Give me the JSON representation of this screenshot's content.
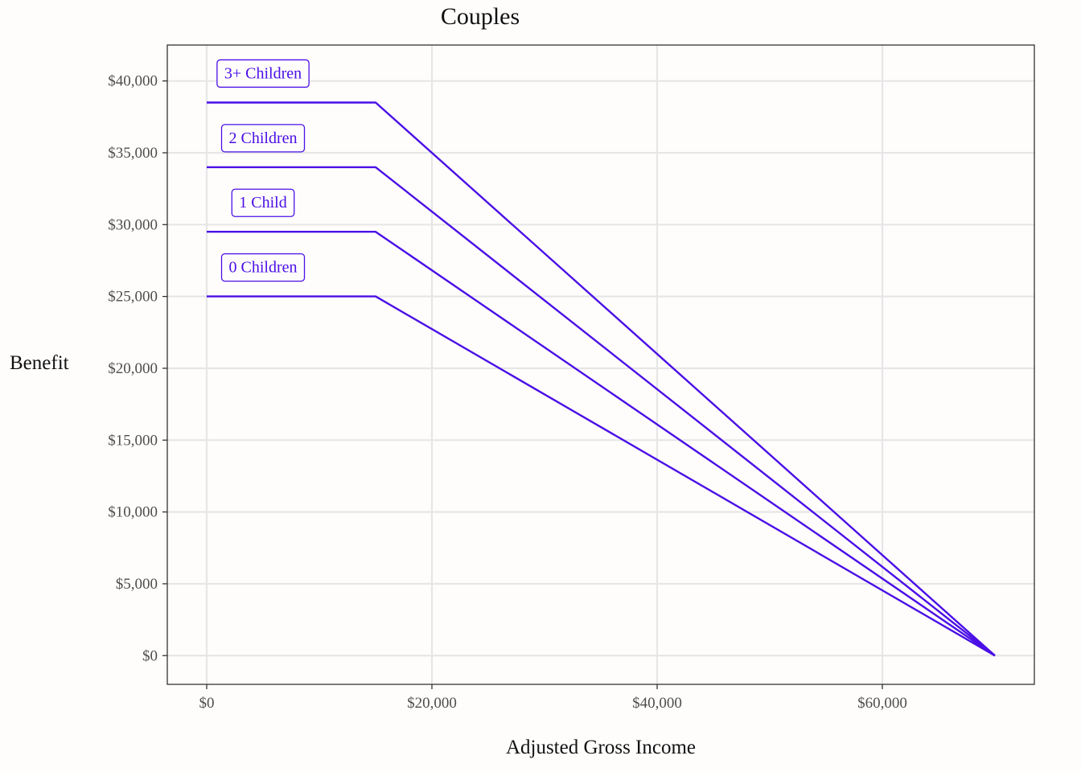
{
  "chart_data": {
    "type": "line",
    "title": "Couples",
    "xlabel": "Adjusted Gross Income",
    "ylabel": "Benefit",
    "xlim": [
      -3500,
      73500
    ],
    "ylim": [
      -2000,
      42500
    ],
    "x_ticks": [
      0,
      20000,
      40000,
      60000
    ],
    "x_tick_labels": [
      "$0",
      "$20,000",
      "$40,000",
      "$60,000"
    ],
    "y_ticks": [
      0,
      5000,
      10000,
      15000,
      20000,
      25000,
      30000,
      35000,
      40000
    ],
    "y_tick_labels": [
      "$0",
      "$5,000",
      "$10,000",
      "$15,000",
      "$20,000",
      "$25,000",
      "$30,000",
      "$35,000",
      "$40,000"
    ],
    "grid": true,
    "legend": "none",
    "line_color": "#4a0fe6",
    "series": [
      {
        "name": "0 Children",
        "x": [
          0,
          15000,
          70000
        ],
        "y": [
          25000,
          25000,
          0
        ]
      },
      {
        "name": "1 Child",
        "x": [
          0,
          15000,
          70000
        ],
        "y": [
          29500,
          29500,
          0
        ]
      },
      {
        "name": "2 Children",
        "x": [
          0,
          15000,
          70000
        ],
        "y": [
          34000,
          34000,
          0
        ]
      },
      {
        "name": "3+ Children",
        "x": [
          0,
          15000,
          70000
        ],
        "y": [
          38500,
          38500,
          0
        ]
      }
    ]
  }
}
